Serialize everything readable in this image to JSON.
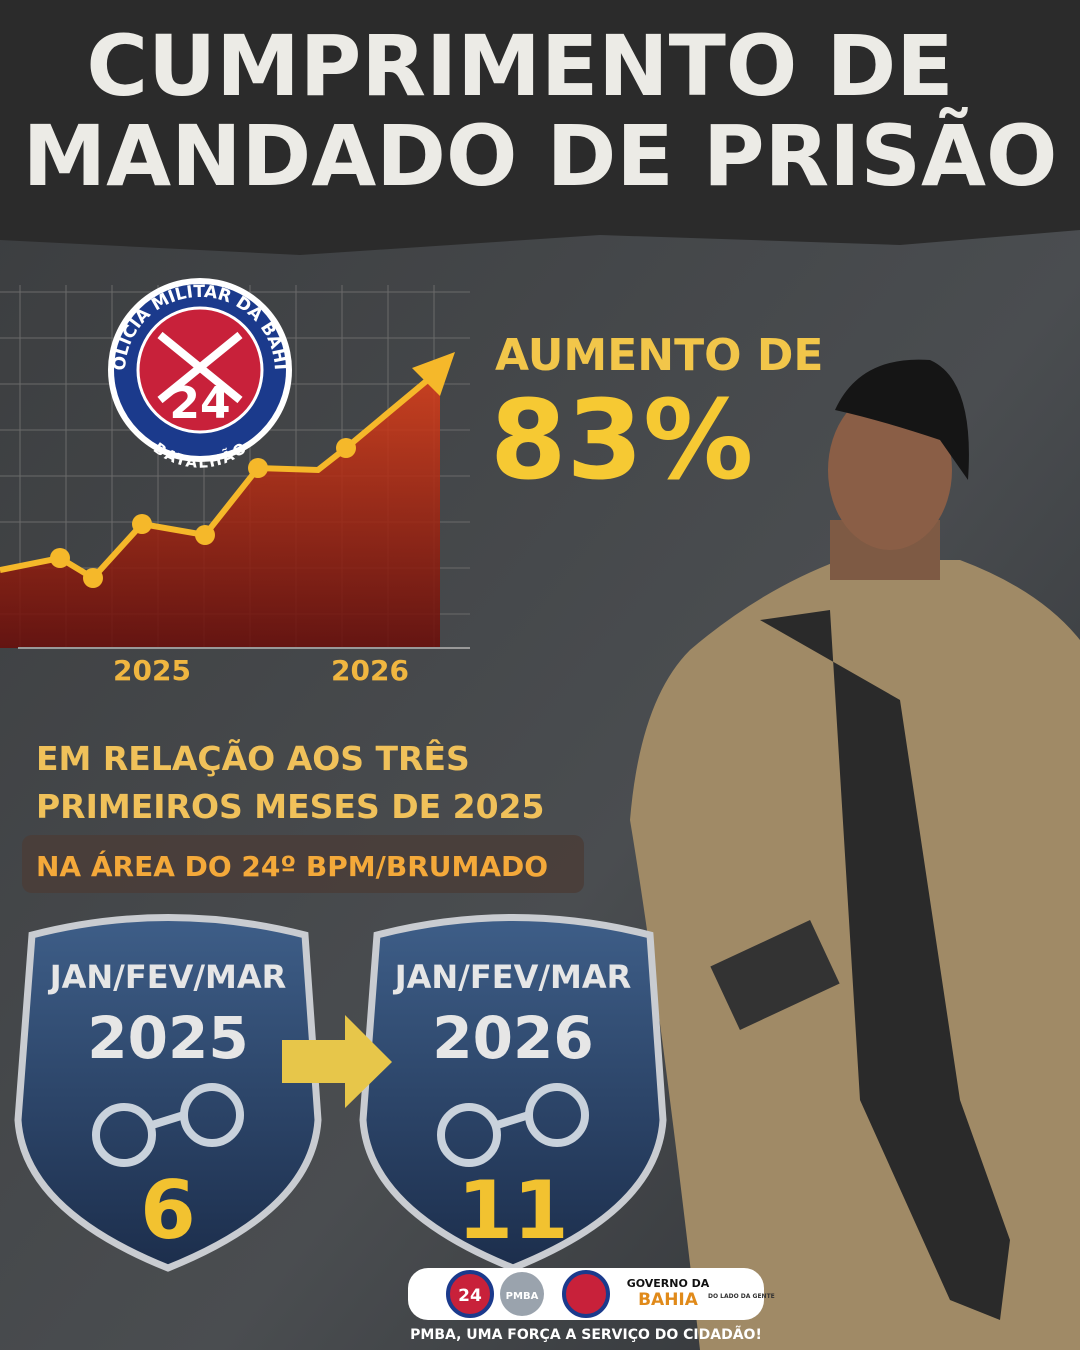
{
  "header": {
    "title_lines": [
      "CUMPRIMENTO DE",
      "MANDADO DE PRISÃO"
    ]
  },
  "emblem": {
    "ring_top": "POLÍCIA MILITAR DA BAHIA",
    "number": "24",
    "ring_bottom": "BATALHÃO"
  },
  "chart": {
    "x_labels": [
      "2025",
      "2026"
    ]
  },
  "headline": {
    "label": "AUMENTO DE",
    "value": "83%"
  },
  "note": {
    "lines": [
      "EM RELAÇÃO AOS TRÊS",
      "PRIMEIROS MESES DE 2025"
    ],
    "area": "NA ÁREA DO 24º BPM/BRUMADO"
  },
  "comparison": [
    {
      "period": "JAN/FEV/MAR",
      "year": "2025",
      "count": "6"
    },
    {
      "period": "JAN/FEV/MAR",
      "year": "2026",
      "count": "11"
    }
  ],
  "footer": {
    "logos": [
      "24",
      "PMBA",
      "GOVERNO DA",
      "BAHIA",
      "DO LADO DA GENTE"
    ],
    "tagline": "PMBA, UMA FORÇA A SERVIÇO DO CIDADÃO!"
  }
}
